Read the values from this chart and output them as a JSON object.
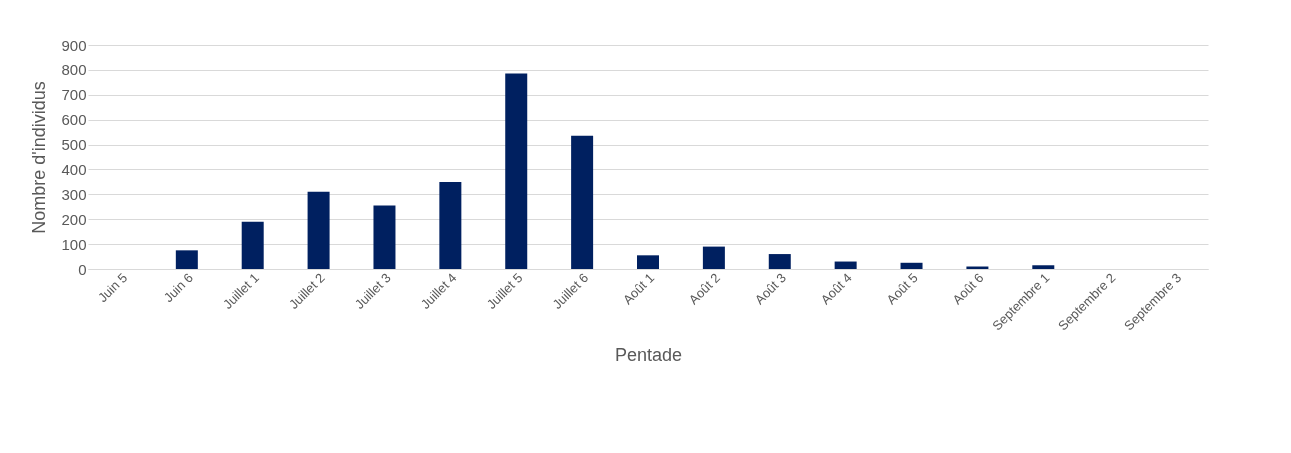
{
  "chart_data": {
    "type": "bar",
    "xlabel": "Pentade",
    "ylabel": "Nombre d'individus",
    "categories": [
      "Juin 5",
      "Juin 6",
      "Juillet 1",
      "Juillet 2",
      "Juillet 3",
      "Juillet 4",
      "Juillet 5",
      "Juillet 6",
      "Août 1",
      "Août 2",
      "Août 3",
      "Août 4",
      "Août 5",
      "Août 6",
      "Septembre 1",
      "Septembre 2",
      "Septembre 3"
    ],
    "values": [
      0,
      75,
      190,
      310,
      255,
      350,
      785,
      535,
      55,
      90,
      60,
      30,
      25,
      10,
      15,
      0,
      0
    ],
    "color": "#002060",
    "ylim": [
      0,
      900
    ],
    "yticks": [
      0,
      100,
      200,
      300,
      400,
      500,
      600,
      700,
      800,
      900
    ],
    "grid": "y"
  }
}
